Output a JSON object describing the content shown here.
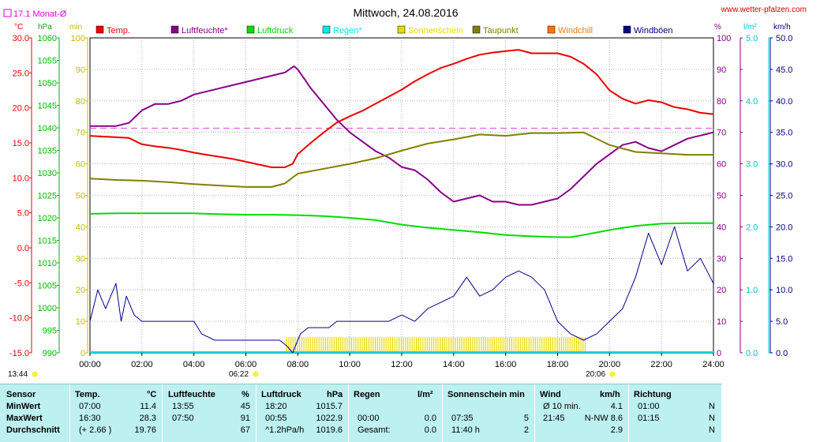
{
  "title": "Mittwoch, 24.08.2016",
  "website": "www.wetter-pfalzen.com",
  "monthly_avg_label": "17.1 Monat-Ø",
  "time_markers": {
    "left": "13:44",
    "sunrise": "06:22",
    "sunset": "20:06"
  },
  "unit_labels": {
    "temp": "°C",
    "pressure": "hPa",
    "sun": "min",
    "humidity": "%",
    "rain": "l/m²",
    "wind": "km/h"
  },
  "legend": [
    {
      "name": "Temp.",
      "color": "#ee0000"
    },
    {
      "name": "Luftfeuchte*",
      "color": "#880088"
    },
    {
      "name": "Luftdruck",
      "color": "#00dd00"
    },
    {
      "name": "Regen*",
      "color": "#00e8e8"
    },
    {
      "name": "Sonnenschein",
      "color": "#e8d800"
    },
    {
      "name": "Taupunkt",
      "color": "#808000"
    },
    {
      "name": "Windchill",
      "color": "#ff7700"
    },
    {
      "name": "Windböen",
      "color": "#000088"
    }
  ],
  "chart_data": {
    "type": "line",
    "title": "Mittwoch, 24.08.2016",
    "x_ticks": [
      "00:00",
      "02:00",
      "04:00",
      "06:00",
      "08:00",
      "10:00",
      "12:00",
      "14:00",
      "16:00",
      "18:00",
      "20:00",
      "22:00",
      "24:00"
    ],
    "x_range_hours": [
      0,
      24
    ],
    "axes": {
      "temp_c": {
        "range": [
          -15,
          30
        ],
        "ticks": [
          "30.0",
          "25.0",
          "20.0",
          "15.0",
          "10.0",
          "5.0",
          "0.0",
          "-5.0",
          "-10.0",
          "-15.0"
        ],
        "color": "#ee0000"
      },
      "pressure_hpa": {
        "range": [
          990,
          1060
        ],
        "ticks": [
          "1060",
          "1055",
          "1050",
          "1045",
          "1040",
          "1035",
          "1030",
          "1025",
          "1020",
          "1015",
          "1010",
          "1005",
          "1000",
          "995",
          "990"
        ],
        "color": "#00dd00"
      },
      "sun_min": {
        "range": [
          0,
          100
        ],
        "ticks": [
          "100",
          "90",
          "80",
          "70",
          "60",
          "50",
          "40",
          "30",
          "20",
          "10",
          "0"
        ],
        "color": "#e8d800"
      },
      "humidity_pct": {
        "range": [
          0,
          100
        ],
        "ticks": [
          "100",
          "90",
          "80",
          "70",
          "60",
          "50",
          "40",
          "30",
          "20",
          "10",
          "0"
        ],
        "color": "#880088"
      },
      "rain_lm2": {
        "range": [
          0,
          5
        ],
        "ticks": [
          "5.0",
          "4.0",
          "3.0",
          "2.0",
          "1.0",
          "0.0"
        ],
        "color": "#00e8e8"
      },
      "wind_kmh": {
        "range": [
          0,
          50
        ],
        "ticks": [
          "50.0",
          "45.0",
          "40.0",
          "35.0",
          "30.0",
          "25.0",
          "20.0",
          "15.0",
          "10.0",
          "5.0",
          "0.0"
        ],
        "color": "#000088"
      }
    },
    "monthly_avg_temp_c": 17.1,
    "series": [
      {
        "name": "Temp.",
        "axis": "temp_c",
        "color": "#ee0000",
        "points": [
          [
            0,
            16.0
          ],
          [
            1,
            15.8
          ],
          [
            1.5,
            15.7
          ],
          [
            2,
            14.8
          ],
          [
            2.5,
            14.5
          ],
          [
            3,
            14.3
          ],
          [
            3.5,
            14.0
          ],
          [
            4,
            13.6
          ],
          [
            4.5,
            13.3
          ],
          [
            5,
            13.0
          ],
          [
            5.5,
            12.7
          ],
          [
            6,
            12.3
          ],
          [
            6.5,
            11.9
          ],
          [
            7,
            11.5
          ],
          [
            7.5,
            11.5
          ],
          [
            7.8,
            12.0
          ],
          [
            8,
            13.4
          ],
          [
            8.5,
            15.0
          ],
          [
            9,
            16.5
          ],
          [
            9.5,
            17.9
          ],
          [
            10,
            18.8
          ],
          [
            10.5,
            19.6
          ],
          [
            11,
            20.6
          ],
          [
            11.5,
            21.6
          ],
          [
            12,
            22.6
          ],
          [
            12.5,
            23.8
          ],
          [
            13,
            24.8
          ],
          [
            13.5,
            25.7
          ],
          [
            14,
            26.3
          ],
          [
            14.5,
            27.0
          ],
          [
            15,
            27.6
          ],
          [
            15.5,
            27.9
          ],
          [
            16,
            28.1
          ],
          [
            16.5,
            28.3
          ],
          [
            17,
            27.8
          ],
          [
            17.5,
            27.8
          ],
          [
            18,
            27.8
          ],
          [
            18.5,
            27.3
          ],
          [
            19,
            26.3
          ],
          [
            19.5,
            24.8
          ],
          [
            20,
            22.5
          ],
          [
            20.5,
            21.3
          ],
          [
            21,
            20.6
          ],
          [
            21.5,
            21.1
          ],
          [
            22,
            20.8
          ],
          [
            22.5,
            20.1
          ],
          [
            23,
            19.8
          ],
          [
            23.5,
            19.3
          ],
          [
            24,
            19.1
          ]
        ]
      },
      {
        "name": "Luftfeuchte*",
        "axis": "humidity_pct",
        "color": "#880088",
        "points": [
          [
            0,
            72
          ],
          [
            1,
            72
          ],
          [
            1.5,
            73
          ],
          [
            2,
            77
          ],
          [
            2.5,
            79
          ],
          [
            3,
            79
          ],
          [
            3.5,
            80
          ],
          [
            4,
            82
          ],
          [
            4.5,
            83
          ],
          [
            5,
            84
          ],
          [
            5.5,
            85
          ],
          [
            6,
            86
          ],
          [
            6.5,
            87
          ],
          [
            7,
            88
          ],
          [
            7.5,
            89
          ],
          [
            7.85,
            91
          ],
          [
            8,
            90
          ],
          [
            8.5,
            84
          ],
          [
            9,
            79
          ],
          [
            9.5,
            74
          ],
          [
            10,
            70
          ],
          [
            10.5,
            67
          ],
          [
            11,
            64
          ],
          [
            11.5,
            62
          ],
          [
            12,
            59
          ],
          [
            12.5,
            58
          ],
          [
            13,
            55
          ],
          [
            13.5,
            51
          ],
          [
            14,
            48
          ],
          [
            14.5,
            49
          ],
          [
            15,
            50
          ],
          [
            15.5,
            48
          ],
          [
            16,
            48
          ],
          [
            16.5,
            47
          ],
          [
            17,
            47
          ],
          [
            17.5,
            48
          ],
          [
            18,
            49
          ],
          [
            18.5,
            52
          ],
          [
            19,
            56
          ],
          [
            19.5,
            60
          ],
          [
            20,
            63
          ],
          [
            20.5,
            66
          ],
          [
            21,
            67
          ],
          [
            21.5,
            65
          ],
          [
            22,
            64
          ],
          [
            22.5,
            66
          ],
          [
            23,
            68
          ],
          [
            23.5,
            69
          ],
          [
            24,
            70
          ]
        ]
      },
      {
        "name": "Luftdruck",
        "axis": "pressure_hpa",
        "color": "#00dd00",
        "points": [
          [
            0,
            1020.9
          ],
          [
            1,
            1021.0
          ],
          [
            2,
            1021.0
          ],
          [
            3,
            1021.0
          ],
          [
            4,
            1021.0
          ],
          [
            5,
            1020.8
          ],
          [
            6,
            1020.7
          ],
          [
            7,
            1020.7
          ],
          [
            8,
            1020.6
          ],
          [
            9,
            1020.4
          ],
          [
            10,
            1020.0
          ],
          [
            11,
            1019.5
          ],
          [
            12,
            1018.5
          ],
          [
            13,
            1017.8
          ],
          [
            14,
            1017.3
          ],
          [
            15,
            1016.8
          ],
          [
            16,
            1016.2
          ],
          [
            17,
            1015.9
          ],
          [
            18,
            1015.7
          ],
          [
            18.5,
            1015.7
          ],
          [
            19,
            1016.2
          ],
          [
            20,
            1017.3
          ],
          [
            21,
            1018.2
          ],
          [
            22,
            1018.7
          ],
          [
            23,
            1018.8
          ],
          [
            24,
            1018.8
          ]
        ]
      },
      {
        "name": "Taupunkt",
        "axis": "temp_c",
        "color": "#808000",
        "points": [
          [
            0,
            9.9
          ],
          [
            1,
            9.7
          ],
          [
            2,
            9.6
          ],
          [
            3,
            9.4
          ],
          [
            4,
            9.1
          ],
          [
            5,
            8.9
          ],
          [
            6,
            8.7
          ],
          [
            7,
            8.7
          ],
          [
            7.5,
            9.2
          ],
          [
            8,
            10.6
          ],
          [
            9,
            11.3
          ],
          [
            10,
            12.0
          ],
          [
            11,
            12.8
          ],
          [
            12,
            13.9
          ],
          [
            13,
            14.9
          ],
          [
            14,
            15.5
          ],
          [
            15,
            16.2
          ],
          [
            16,
            16.0
          ],
          [
            17,
            16.4
          ],
          [
            18,
            16.4
          ],
          [
            19,
            16.5
          ],
          [
            20,
            14.7
          ],
          [
            21,
            13.7
          ],
          [
            22,
            13.5
          ],
          [
            23,
            13.3
          ],
          [
            24,
            13.3
          ]
        ]
      },
      {
        "name": "Windböen",
        "axis": "wind_kmh",
        "color": "#000088",
        "points": [
          [
            0,
            5
          ],
          [
            0.3,
            10
          ],
          [
            0.6,
            7
          ],
          [
            1,
            11
          ],
          [
            1.2,
            5
          ],
          [
            1.4,
            9
          ],
          [
            1.7,
            6
          ],
          [
            2,
            5
          ],
          [
            2.3,
            5
          ],
          [
            2.8,
            5
          ],
          [
            3.2,
            5
          ],
          [
            3.6,
            5
          ],
          [
            4,
            5
          ],
          [
            4.3,
            3
          ],
          [
            4.8,
            2
          ],
          [
            5.3,
            2
          ],
          [
            5.8,
            2
          ],
          [
            6.3,
            2
          ],
          [
            6.8,
            2
          ],
          [
            7.3,
            2
          ],
          [
            7.6,
            1
          ],
          [
            7.8,
            0
          ],
          [
            8.1,
            3
          ],
          [
            8.4,
            4
          ],
          [
            8.8,
            4
          ],
          [
            9.2,
            4
          ],
          [
            9.5,
            5
          ],
          [
            10,
            5
          ],
          [
            10.5,
            5
          ],
          [
            11,
            5
          ],
          [
            11.5,
            5
          ],
          [
            12,
            6
          ],
          [
            12.5,
            5
          ],
          [
            13,
            7
          ],
          [
            13.5,
            8
          ],
          [
            14,
            9
          ],
          [
            14.5,
            12
          ],
          [
            15,
            9
          ],
          [
            15.5,
            10
          ],
          [
            16,
            12
          ],
          [
            16.5,
            13
          ],
          [
            17,
            12
          ],
          [
            17.5,
            10
          ],
          [
            18,
            5
          ],
          [
            18.5,
            3
          ],
          [
            19,
            2
          ],
          [
            19.5,
            3
          ],
          [
            20,
            5
          ],
          [
            20.5,
            7
          ],
          [
            21,
            12
          ],
          [
            21.5,
            19
          ],
          [
            22,
            14
          ],
          [
            22.5,
            20
          ],
          [
            23,
            13
          ],
          [
            23.5,
            15
          ],
          [
            24,
            11
          ]
        ]
      }
    ],
    "sunshine_bars": {
      "axis": "sun_min",
      "start_hour": 7.55,
      "end_hour": 19.05,
      "value": 5
    },
    "rain_value_lm2": 0.0
  },
  "stats": {
    "headers": {
      "sensor": "Sensor",
      "temp": "Temp.",
      "temp_unit": "°C",
      "hum": "Luftfeuchte",
      "hum_unit": "%",
      "press": "Luftdruck",
      "press_unit": "hPa",
      "rain": "Regen",
      "rain_unit": "l/m²",
      "sun": "Sonnenschein min",
      "wind": "Wind",
      "wind_unit": "km/h",
      "dir": "Richtung"
    },
    "rows": [
      {
        "label": "MinWert",
        "temp_time": "07:00",
        "temp_val": "11.4",
        "hum_time": "13:55",
        "hum_val": "45",
        "press_time": "18:20",
        "press_val": "1015.7",
        "rain_time": "",
        "rain_val": "",
        "sun_time": "",
        "sun_val": "",
        "wind_time": "Ø 10 min.",
        "wind_val": "4.1",
        "dir_time": "01:00",
        "dir_val": "N"
      },
      {
        "label": "MaxWert",
        "temp_time": "16:30",
        "temp_val": "28.3",
        "hum_time": "07:50",
        "hum_val": "91",
        "press_time": "00:55",
        "press_val": "1022.9",
        "rain_time": "00:00",
        "rain_val": "0.0",
        "sun_time": "07:35",
        "sun_val": "5",
        "wind_time": "21:45",
        "wind_val": "N-NW 8.6",
        "dir_time": "01:15",
        "dir_val": "N"
      },
      {
        "label": "Durchschnitt",
        "temp_time": "(+ 2.66 )",
        "temp_val": "19.76",
        "hum_time": "",
        "hum_val": "67",
        "press_time": "^1.2hPa/h",
        "press_val": "1019.6",
        "rain_time": "Gesamt:",
        "rain_val": "0.0",
        "sun_time": "11:40 h",
        "sun_val": "2",
        "wind_time": "",
        "wind_val": "2.9",
        "dir_time": "",
        "dir_val": "N"
      }
    ]
  }
}
